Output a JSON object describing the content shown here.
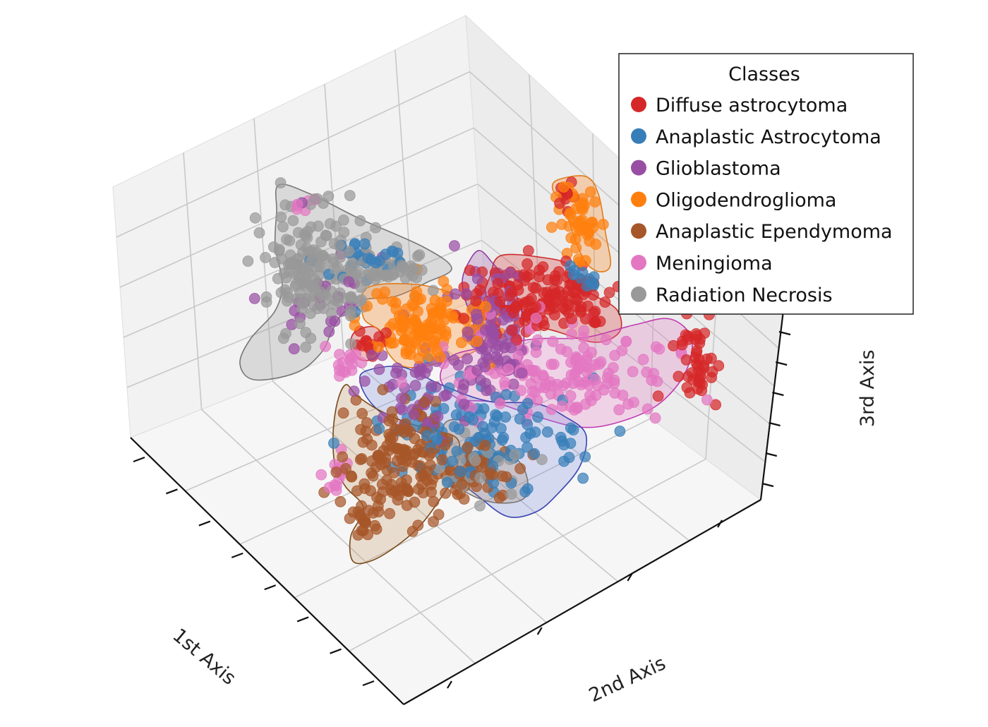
{
  "chart_data": {
    "type": "scatter",
    "projection": "3d",
    "title": "",
    "xlabel": "1st Axis",
    "ylabel": "2nd Axis",
    "zlabel": "3rd Axis",
    "grid": true,
    "legend": {
      "title": "Classes",
      "placement": "top-right"
    },
    "series": [
      {
        "name": "Diffuse astrocytoma",
        "color": "#d62728",
        "regions": [
          {
            "cx": 765,
            "cy": 420,
            "rx": 95,
            "ry": 45,
            "n": 140
          },
          {
            "cx": 990,
            "cy": 520,
            "rx": 30,
            "ry": 65,
            "n": 45
          },
          {
            "cx": 520,
            "cy": 487,
            "rx": 18,
            "ry": 14,
            "n": 14
          },
          {
            "cx": 805,
            "cy": 275,
            "rx": 12,
            "ry": 20,
            "n": 10
          }
        ]
      },
      {
        "name": "Anaplastic Astrocytoma",
        "color": "#377eb8",
        "regions": [
          {
            "cx": 680,
            "cy": 620,
            "rx": 130,
            "ry": 60,
            "n": 120
          },
          {
            "cx": 830,
            "cy": 395,
            "rx": 20,
            "ry": 18,
            "n": 12
          },
          {
            "cx": 520,
            "cy": 370,
            "rx": 70,
            "ry": 40,
            "n": 30
          }
        ]
      },
      {
        "name": "Glioblastoma",
        "color": "#984ea3",
        "regions": [
          {
            "cx": 700,
            "cy": 460,
            "rx": 45,
            "ry": 80,
            "n": 100
          },
          {
            "cx": 600,
            "cy": 560,
            "rx": 80,
            "ry": 50,
            "n": 50
          },
          {
            "cx": 450,
            "cy": 420,
            "rx": 70,
            "ry": 60,
            "n": 25
          }
        ]
      },
      {
        "name": "Oligodendroglioma",
        "color": "#ff7f0e",
        "regions": [
          {
            "cx": 600,
            "cy": 460,
            "rx": 85,
            "ry": 50,
            "n": 120
          },
          {
            "cx": 822,
            "cy": 315,
            "rx": 25,
            "ry": 55,
            "n": 45
          }
        ]
      },
      {
        "name": "Anaplastic Ependymoma",
        "color": "#a65628",
        "regions": [
          {
            "cx": 560,
            "cy": 650,
            "rx": 70,
            "ry": 80,
            "n": 150
          },
          {
            "cx": 680,
            "cy": 665,
            "rx": 60,
            "ry": 40,
            "n": 40
          },
          {
            "cx": 520,
            "cy": 740,
            "rx": 22,
            "ry": 30,
            "n": 18
          }
        ]
      },
      {
        "name": "Meningioma",
        "color": "#e377c2",
        "regions": [
          {
            "cx": 800,
            "cy": 530,
            "rx": 140,
            "ry": 55,
            "n": 140
          },
          {
            "cx": 500,
            "cy": 510,
            "rx": 25,
            "ry": 20,
            "n": 15
          },
          {
            "cx": 480,
            "cy": 670,
            "rx": 12,
            "ry": 30,
            "n": 12
          },
          {
            "cx": 420,
            "cy": 290,
            "rx": 18,
            "ry": 12,
            "n": 6
          }
        ]
      },
      {
        "name": "Radiation Necrosis",
        "color": "#999999",
        "regions": [
          {
            "cx": 450,
            "cy": 380,
            "rx": 75,
            "ry": 75,
            "n": 180
          },
          {
            "cx": 560,
            "cy": 380,
            "rx": 60,
            "ry": 25,
            "n": 35
          },
          {
            "cx": 670,
            "cy": 660,
            "rx": 60,
            "ry": 40,
            "n": 30
          }
        ]
      }
    ],
    "hulls": [
      {
        "name": "Radiation Necrosis",
        "color": "#777777",
        "fill": "#999999",
        "path": [
          [
            395,
            262
          ],
          [
            440,
            275
          ],
          [
            510,
            310
          ],
          [
            600,
            350
          ],
          [
            640,
            380
          ],
          [
            605,
            400
          ],
          [
            560,
            420
          ],
          [
            515,
            425
          ],
          [
            485,
            445
          ],
          [
            470,
            470
          ],
          [
            455,
            500
          ],
          [
            420,
            528
          ],
          [
            360,
            538
          ],
          [
            340,
            515
          ],
          [
            355,
            480
          ],
          [
            390,
            440
          ],
          [
            400,
            400
          ],
          [
            390,
            350
          ],
          [
            392,
            300
          ]
        ]
      },
      {
        "name": "Diffuse astrocytoma",
        "color": "#cc2a2a",
        "fill": "#d62728",
        "path": [
          [
            710,
            362
          ],
          [
            770,
            365
          ],
          [
            805,
            375
          ],
          [
            808,
            400
          ],
          [
            845,
            420
          ],
          [
            875,
            440
          ],
          [
            878,
            470
          ],
          [
            845,
            485
          ],
          [
            790,
            470
          ],
          [
            745,
            455
          ],
          [
            735,
            430
          ],
          [
            690,
            420
          ],
          [
            695,
            390
          ]
        ]
      },
      {
        "name": "Diffuse astrocytoma",
        "color": "#cc2a2a",
        "fill": "#d62728",
        "path": [
          [
            503,
            470
          ],
          [
            530,
            463
          ],
          [
            542,
            480
          ],
          [
            535,
            505
          ],
          [
            512,
            510
          ],
          [
            497,
            492
          ]
        ]
      },
      {
        "name": "Oligodendroglioma",
        "color": "#e07b1a",
        "fill": "#ff7f0e",
        "path": [
          [
            790,
            255
          ],
          [
            830,
            250
          ],
          [
            848,
            275
          ],
          [
            858,
            330
          ],
          [
            865,
            375
          ],
          [
            850,
            385
          ],
          [
            830,
            372
          ],
          [
            815,
            340
          ],
          [
            805,
            310
          ],
          [
            795,
            285
          ],
          [
            783,
            268
          ]
        ]
      },
      {
        "name": "Oligodendroglioma",
        "color": "#e07b1a",
        "fill": "#ff7f0e",
        "path": [
          [
            520,
            408
          ],
          [
            590,
            403
          ],
          [
            650,
            418
          ],
          [
            685,
            432
          ],
          [
            693,
            470
          ],
          [
            672,
            498
          ],
          [
            620,
            515
          ],
          [
            575,
            520
          ],
          [
            550,
            500
          ],
          [
            540,
            470
          ],
          [
            515,
            450
          ]
        ]
      },
      {
        "name": "Glioblastoma",
        "color": "#8e3fa0",
        "fill": "#984ea3",
        "path": [
          [
            680,
            355
          ],
          [
            700,
            375
          ],
          [
            725,
            405
          ],
          [
            740,
            445
          ],
          [
            742,
            490
          ],
          [
            735,
            520
          ],
          [
            718,
            532
          ],
          [
            700,
            520
          ],
          [
            712,
            495
          ],
          [
            690,
            470
          ],
          [
            665,
            440
          ],
          [
            655,
            400
          ],
          [
            665,
            370
          ]
        ]
      },
      {
        "name": "Meningioma",
        "color": "#c03cb0",
        "fill": "#e377c2",
        "path": [
          [
            650,
            500
          ],
          [
            710,
            488
          ],
          [
            760,
            480
          ],
          [
            830,
            478
          ],
          [
            900,
            460
          ],
          [
            950,
            452
          ],
          [
            980,
            480
          ],
          [
            970,
            530
          ],
          [
            930,
            575
          ],
          [
            870,
            600
          ],
          [
            820,
            605
          ],
          [
            760,
            590
          ],
          [
            700,
            570
          ],
          [
            650,
            565
          ],
          [
            625,
            540
          ],
          [
            630,
            515
          ]
        ]
      },
      {
        "name": "Anaplastic Astrocytoma",
        "color": "#3a45b0",
        "fill": "#7f8fe0",
        "path": [
          [
            520,
            525
          ],
          [
            570,
            520
          ],
          [
            625,
            545
          ],
          [
            690,
            568
          ],
          [
            760,
            572
          ],
          [
            800,
            590
          ],
          [
            830,
            615
          ],
          [
            822,
            660
          ],
          [
            790,
            700
          ],
          [
            760,
            725
          ],
          [
            720,
            732
          ],
          [
            680,
            705
          ],
          [
            640,
            670
          ],
          [
            605,
            620
          ],
          [
            560,
            600
          ],
          [
            525,
            570
          ],
          [
            510,
            540
          ]
        ]
      },
      {
        "name": "Anaplastic Ependymoma",
        "color": "#7a4a1a",
        "fill": "#c49a6c",
        "path": [
          [
            490,
            545
          ],
          [
            505,
            560
          ],
          [
            535,
            580
          ],
          [
            580,
            600
          ],
          [
            620,
            610
          ],
          [
            650,
            625
          ],
          [
            645,
            670
          ],
          [
            625,
            705
          ],
          [
            595,
            745
          ],
          [
            560,
            775
          ],
          [
            525,
            795
          ],
          [
            500,
            795
          ],
          [
            497,
            760
          ],
          [
            515,
            720
          ],
          [
            490,
            690
          ],
          [
            475,
            660
          ],
          [
            472,
            615
          ],
          [
            478,
            570
          ]
        ]
      },
      {
        "name": "Radiation Necrosis",
        "color": "#777777",
        "fill": "#a08a70",
        "path": [
          [
            630,
            600
          ],
          [
            665,
            598
          ],
          [
            700,
            620
          ],
          [
            740,
            660
          ],
          [
            748,
            695
          ],
          [
            735,
            710
          ],
          [
            700,
            712
          ],
          [
            665,
            700
          ],
          [
            640,
            680
          ],
          [
            628,
            650
          ]
        ]
      }
    ]
  }
}
